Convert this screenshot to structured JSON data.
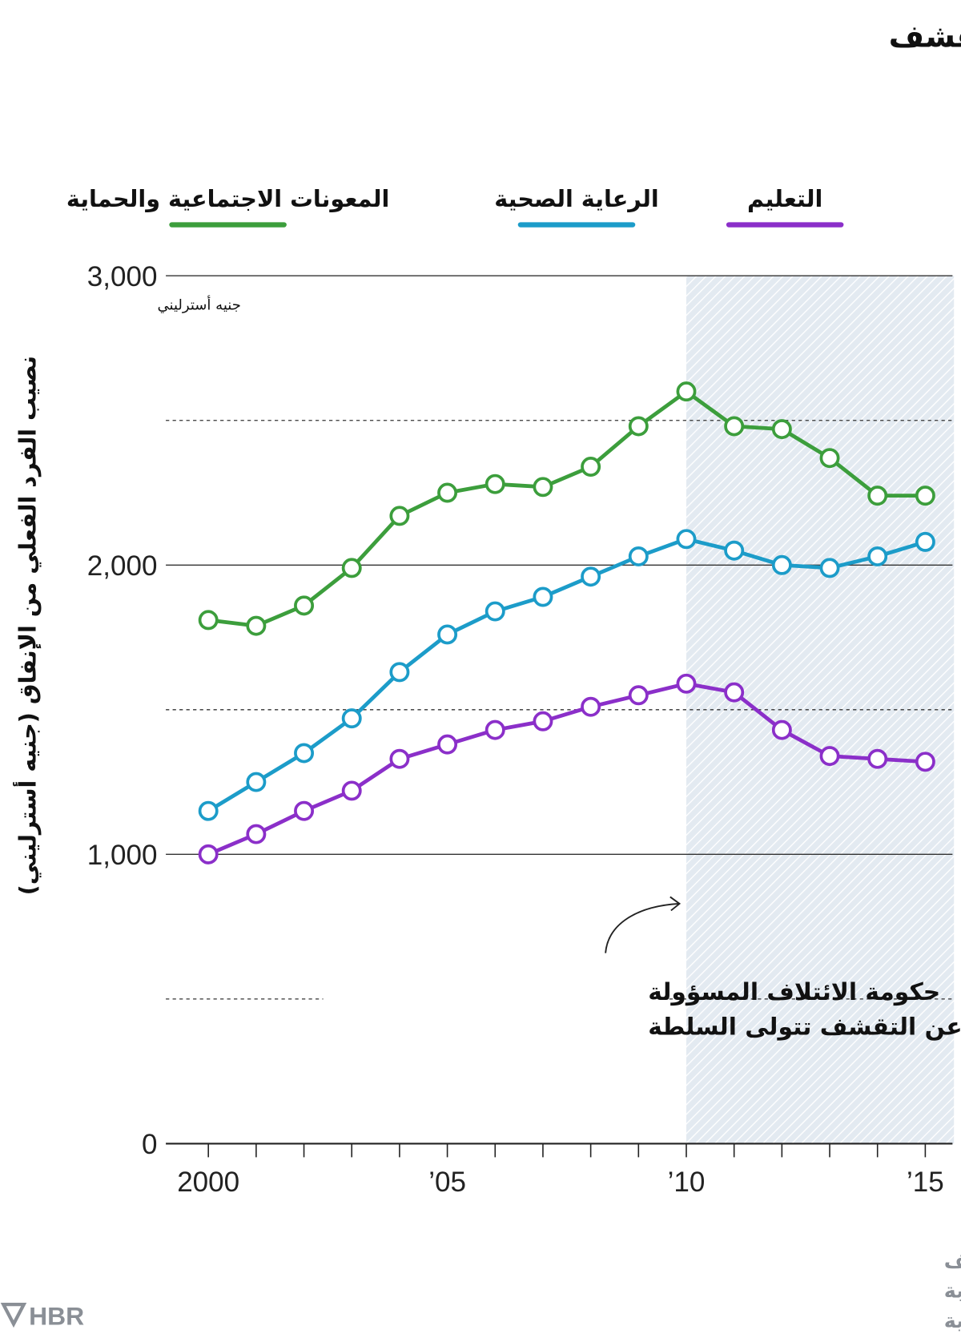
{
  "title": "انخفض الإنفاق العام لحكومة المملكة المتحدة بعد التقشف",
  "source": {
    "line1": "المصدر: مقال \"ثيمو فيتزر\" (Thiemo Fetzer) الذي يحمل عنوان \"هل أدى التقشف",
    "line2": "إلى أزمة البريكست؟\" (Did Austerity Cause Brexit?)، وبيانات من هيئة صاحبة",
    "line3": "الجلالة للإيرادات والجمارك ومكتب الإحصاءات الوطنية"
  },
  "logo": "HBR",
  "chart_data": {
    "type": "line",
    "ylabel": "نصيب الفرد الفعلي من الإنفاق (جنيه أسترليني)",
    "y_unit_label": "جنيه أسترليني",
    "ylim": [
      0,
      3000
    ],
    "yticks": [
      0,
      1000,
      2000,
      3000
    ],
    "ytick_labels": [
      "0",
      "1,000",
      "2,000",
      "3,000"
    ],
    "y_dashed_gridlines": [
      500,
      1500,
      2500
    ],
    "x": [
      2000,
      2001,
      2002,
      2003,
      2004,
      2005,
      2006,
      2007,
      2008,
      2009,
      2010,
      2011,
      2012,
      2013,
      2014,
      2015
    ],
    "xtick_labels": [
      {
        "x": 2000,
        "label": "2000"
      },
      {
        "x": 2005,
        "label": "’05"
      },
      {
        "x": 2010,
        "label": "’10"
      },
      {
        "x": 2015,
        "label": "’15"
      }
    ],
    "legend_placement": "top",
    "series": [
      {
        "name": "المعونات الاجتماعية والحماية",
        "color": "#3c9e3c",
        "values": [
          1810,
          1790,
          1860,
          1990,
          2170,
          2250,
          2280,
          2270,
          2340,
          2480,
          2600,
          2480,
          2470,
          2370,
          2240,
          2240
        ]
      },
      {
        "name": "الرعاية الصحية",
        "color": "#1c9cc9",
        "values": [
          1150,
          1250,
          1350,
          1470,
          1630,
          1760,
          1840,
          1890,
          1960,
          2030,
          2090,
          2050,
          2000,
          1990,
          2030,
          2080
        ]
      },
      {
        "name": "التعليم",
        "color": "#8b2fc9",
        "values": [
          1000,
          1070,
          1150,
          1220,
          1330,
          1380,
          1430,
          1460,
          1510,
          1550,
          1590,
          1560,
          1430,
          1340,
          1330,
          1320
        ]
      }
    ],
    "shaded_region": {
      "from": 2010,
      "to": 2015.6,
      "color": "#e3eaf1"
    },
    "annotation": {
      "line1": "حكومة الائتلاف المسؤولة",
      "line2": "عن التقشف تتولى السلطة",
      "x": 2010
    }
  }
}
